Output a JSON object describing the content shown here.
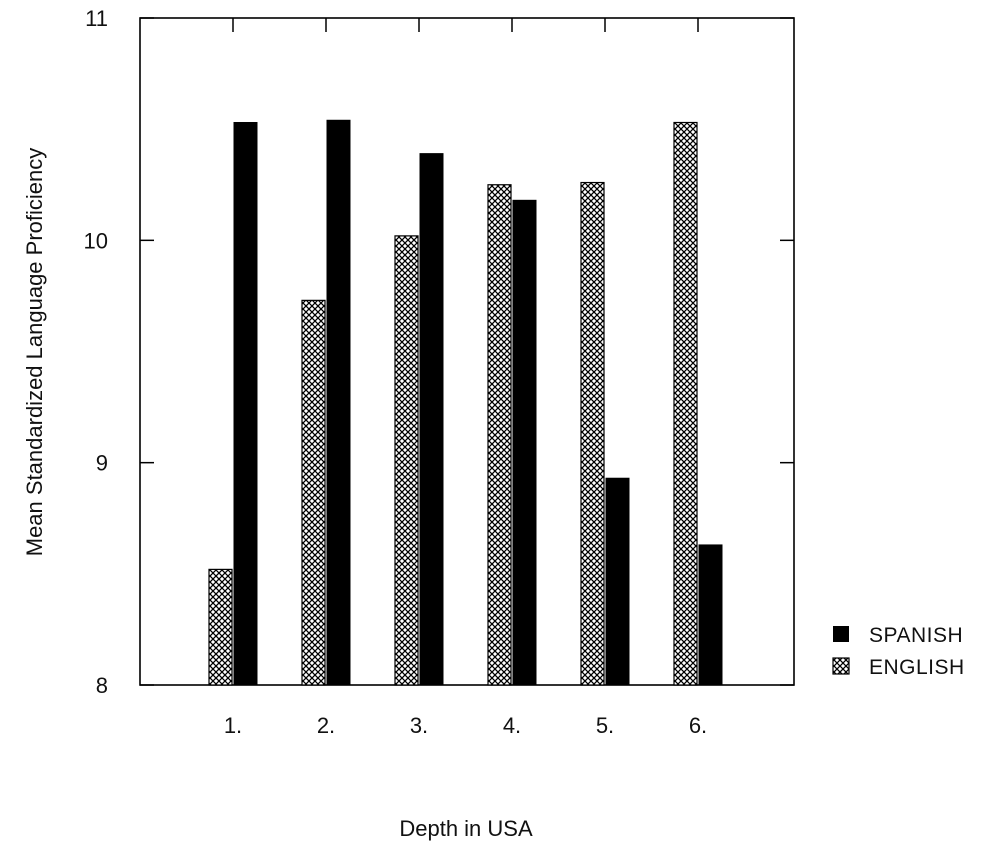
{
  "chart_data": {
    "type": "bar",
    "title": "",
    "xlabel": "Depth in USA",
    "ylabel": "Mean Standardized Language Proficiency",
    "ylim": [
      8,
      11
    ],
    "yticks": [
      8,
      9,
      10,
      11
    ],
    "yticks_labels": [
      "8",
      "9",
      "10",
      "11"
    ],
    "categories": [
      "1.",
      "2.",
      "3.",
      "4.",
      "5.",
      "6."
    ],
    "series": [
      {
        "name": "ENGLISH",
        "values": [
          8.52,
          9.73,
          10.02,
          10.25,
          10.26,
          10.53
        ],
        "pattern": "crosshatch"
      },
      {
        "name": "SPANISH",
        "values": [
          10.53,
          10.54,
          10.39,
          10.18,
          8.93,
          8.63
        ],
        "color": "#000000"
      }
    ],
    "legend": {
      "placement": "right-bottom",
      "order": [
        "SPANISH",
        "ENGLISH"
      ]
    },
    "grid": false
  }
}
